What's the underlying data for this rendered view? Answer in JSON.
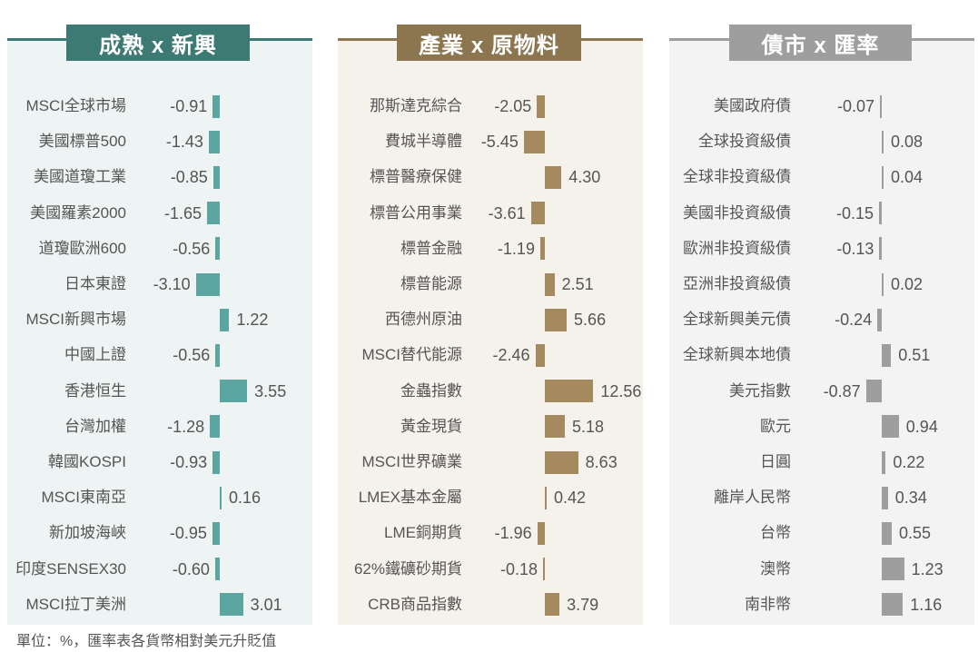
{
  "footnote": "單位：%，匯率表各貨幣相對美元升貶值",
  "chart_data": [
    {
      "type": "bar",
      "orientation": "horizontal",
      "title": "成熟 x 新興",
      "colors": {
        "bar": "#5ba6a0",
        "banner": "#3d7a73",
        "panel": "#eef3f3"
      },
      "categories": [
        "MSCI全球市場",
        "美國標普500",
        "美國道瓊工業",
        "美國羅素2000",
        "道瓊歐洲600",
        "日本東證",
        "MSCI新興市場",
        "中國上證",
        "香港恒生",
        "台灣加權",
        "韓國KOSPI",
        "MSCI東南亞",
        "新加坡海峽",
        "印度SENSEX30",
        "MSCI拉丁美洲"
      ],
      "values": [
        -0.91,
        -1.43,
        -0.85,
        -1.65,
        -0.56,
        -3.1,
        1.22,
        -0.56,
        3.55,
        -1.28,
        -0.93,
        0.16,
        -0.95,
        -0.6,
        3.01
      ],
      "labels": [
        "-0.91",
        "-1.43",
        "-0.85",
        "-1.65",
        "-0.56",
        "-3.10",
        "1.22",
        "-0.56",
        "3.55",
        "-1.28",
        "-0.93",
        "0.16",
        "-0.95",
        "-0.60",
        "3.01"
      ]
    },
    {
      "type": "bar",
      "orientation": "horizontal",
      "title": "產業 x 原物料",
      "colors": {
        "bar": "#a48a5e",
        "banner": "#8c7650",
        "panel": "#f5f2ec"
      },
      "categories": [
        "那斯達克綜合",
        "費城半導體",
        "標普醫療保健",
        "標普公用事業",
        "標普金融",
        "標普能源",
        "西德州原油",
        "MSCI替代能源",
        "金蟲指數",
        "黃金現貨",
        "MSCI世界礦業",
        "LMEX基本金屬",
        "LME銅期貨",
        "62%鐵礦砂期貨",
        "CRB商品指數"
      ],
      "values": [
        -2.05,
        -5.45,
        4.3,
        -3.61,
        -1.19,
        2.51,
        5.66,
        -2.46,
        12.56,
        5.18,
        8.63,
        0.42,
        -1.96,
        -0.18,
        3.79
      ],
      "labels": [
        "-2.05",
        "-5.45",
        "4.30",
        "-3.61",
        "-1.19",
        "2.51",
        "5.66",
        "-2.46",
        "12.56",
        "5.18",
        "8.63",
        "0.42",
        "-1.96",
        "-0.18",
        "3.79"
      ]
    },
    {
      "type": "bar",
      "orientation": "horizontal",
      "title": "債市 x 匯率",
      "colors": {
        "bar": "#9e9e9e",
        "banner": "#9e9e9e",
        "panel": "#f3f3f3"
      },
      "categories": [
        "美國政府債",
        "全球投資級債",
        "全球非投資級債",
        "美國非投資級債",
        "歐洲非投資級債",
        "亞洲非投資級債",
        "全球新興美元債",
        "全球新興本地債",
        "美元指數",
        "歐元",
        "日圓",
        "離岸人民幣",
        "台幣",
        "澳幣",
        "南非幣"
      ],
      "values": [
        -0.07,
        0.08,
        0.04,
        -0.15,
        -0.13,
        0.02,
        -0.24,
        0.51,
        -0.87,
        0.94,
        0.22,
        0.34,
        0.55,
        1.23,
        1.16
      ],
      "labels": [
        "-0.07",
        "0.08",
        "0.04",
        "-0.15",
        "-0.13",
        "0.02",
        "-0.24",
        "0.51",
        "-0.87",
        "0.94",
        "0.22",
        "0.34",
        "0.55",
        "1.23",
        "1.16"
      ]
    }
  ]
}
